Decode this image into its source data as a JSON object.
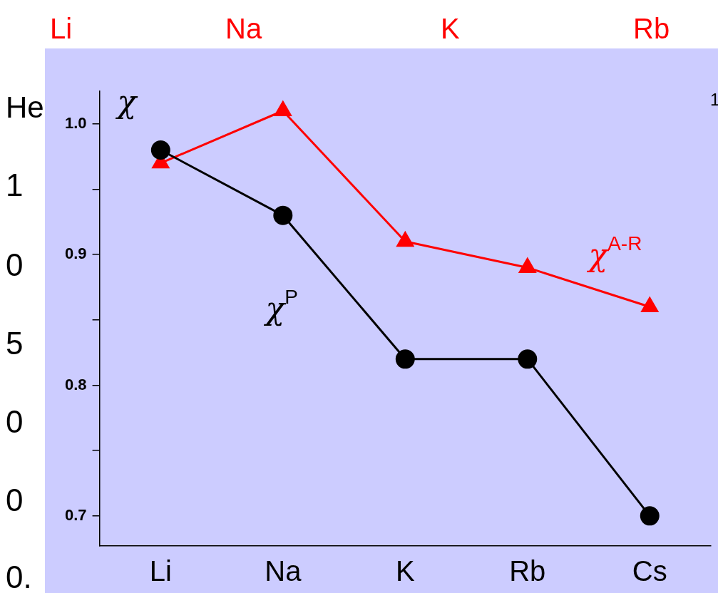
{
  "chart_data": {
    "type": "line",
    "ylabel": "χ",
    "categories": [
      "Li",
      "Na",
      "K",
      "Rb",
      "Cs"
    ],
    "series": [
      {
        "name": "χ$^{P}$",
        "color": "#000000",
        "values": [
          0.98,
          0.93,
          0.82,
          0.82,
          0.7
        ],
        "marker": "circle"
      },
      {
        "name": "χ$^{A-R}$",
        "color": "#ff0000",
        "values": [
          0.97,
          1.01,
          0.91,
          0.89,
          0.86
        ],
        "marker": "triangle"
      }
    ],
    "ylim": [
      0.677,
      1.025
    ],
    "yticks": [
      0.7,
      {
        "value": 0.75,
        "label": null
      },
      0.8,
      {
        "value": 0.85,
        "label": null
      },
      0.9,
      {
        "value": 0.95,
        "label": null
      },
      {
        "value": 1,
        "label": "1.0"
      }
    ],
    "grid": false,
    "legend": false,
    "line_style": "solid",
    "annotations": [
      "Li",
      "Na",
      "K",
      "Rb",
      "He",
      "1",
      "0",
      "5",
      "0",
      "0",
      "0.",
      "1"
    ]
  }
}
